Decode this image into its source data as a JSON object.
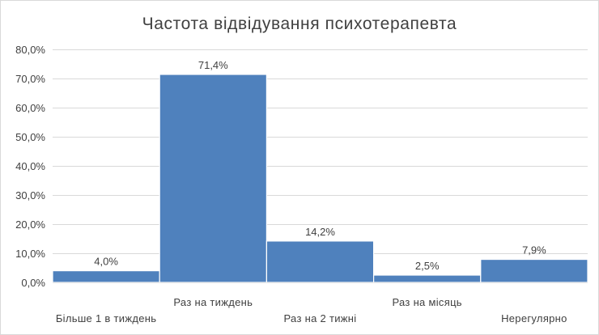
{
  "chart_data": {
    "type": "bar",
    "title": "Частота відвідування психотерапевта",
    "xlabel": "",
    "ylabel": "",
    "categories": [
      "Більше 1 в тиждень",
      "Раз на тиждень",
      "Раз на 2 тижні",
      "Раз на місяць",
      "Нерегулярно"
    ],
    "values": [
      4.0,
      71.4,
      14.2,
      2.5,
      7.9
    ],
    "data_labels": [
      "4,0%",
      "71,4%",
      "14,2%",
      "2,5%",
      "7,9%"
    ],
    "ylim": [
      0,
      80
    ],
    "yticks": [
      0,
      10,
      20,
      30,
      40,
      50,
      60,
      70,
      80
    ],
    "ytick_labels": [
      "0,0%",
      "10,0%",
      "20,0%",
      "30,0%",
      "40,0%",
      "50,0%",
      "60,0%",
      "70,0%",
      "80,0%"
    ],
    "grid": true,
    "legend": "none",
    "bar_color": "#4f81bd",
    "gap_width": 0
  }
}
